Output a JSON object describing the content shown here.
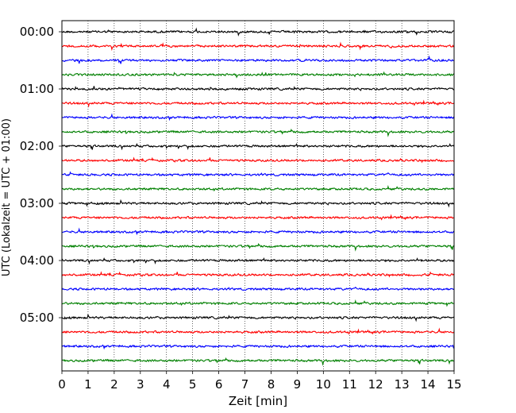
{
  "chart_data": {
    "type": "line",
    "title": "",
    "xlabel": "Zeit  [min]",
    "ylabel": "UTC (Lokalzeit = UTC + 01:00)",
    "xlim": [
      0,
      15
    ],
    "x_ticks": [
      "0",
      "1",
      "2",
      "3",
      "4",
      "5",
      "6",
      "7",
      "8",
      "9",
      "10",
      "11",
      "12",
      "13",
      "14",
      "15"
    ],
    "y_ticks": [
      "00:00",
      "01:00",
      "02:00",
      "03:00",
      "04:00",
      "05:00"
    ],
    "grid": "vertical dotted lines at each minute",
    "trace_interval_minutes": 15,
    "trace_start_times": [
      "00:00",
      "00:15",
      "00:30",
      "00:45",
      "01:00",
      "01:15",
      "01:30",
      "01:45",
      "02:00",
      "02:15",
      "02:30",
      "02:45",
      "03:00",
      "03:15",
      "03:30",
      "03:45",
      "04:00",
      "04:15",
      "04:30",
      "04:45",
      "05:00",
      "05:15",
      "05:30",
      "05:45"
    ],
    "color_cycle": [
      "#000000",
      "#ff0000",
      "#0000ff",
      "#008000"
    ],
    "legend": "none"
  }
}
